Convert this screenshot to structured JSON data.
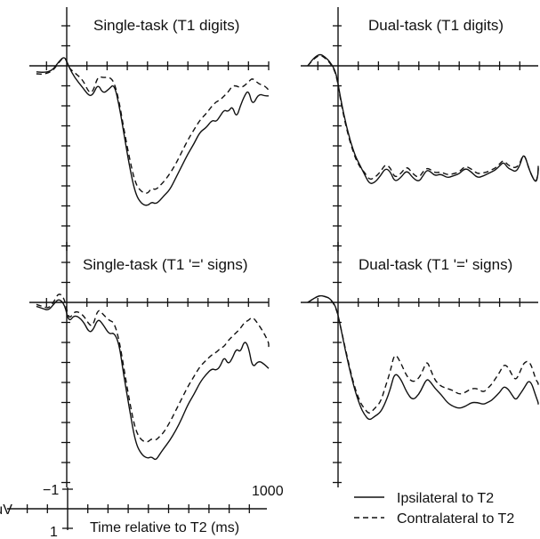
{
  "chart_data": [
    {
      "type": "line",
      "title": "Single-task (T1 digits)",
      "x_unit": "ms",
      "series": [
        {
          "name": "Ipsilateral to T2",
          "x": [
            -150,
            -120,
            -90,
            -65,
            -40,
            -10,
            10,
            40,
            80,
            110,
            130,
            155,
            180,
            210,
            235,
            260,
            280,
            310,
            340,
            370,
            400,
            420,
            440,
            460,
            480,
            510,
            540,
            570,
            600,
            630,
            660,
            690,
            720,
            740,
            760,
            780,
            800,
            820,
            840,
            860,
            880,
            900,
            920,
            950,
            980,
            1000,
            1030
          ],
          "y": [
            0.3,
            0.33,
            0.3,
            0.15,
            -0.2,
            -0.5,
            0.05,
            0.6,
            1.1,
            1.5,
            1.45,
            0.9,
            1.4,
            1.15,
            0.9,
            2.0,
            3.2,
            5.0,
            6.4,
            6.9,
            7.0,
            6.8,
            6.9,
            6.75,
            6.5,
            6.2,
            5.6,
            5.0,
            4.4,
            3.9,
            3.3,
            3.1,
            2.7,
            2.8,
            2.5,
            2.2,
            2.3,
            2.0,
            2.6,
            2.0,
            1.5,
            1.2,
            2.0,
            1.4,
            1.5,
            1.5,
            1.5
          ]
        },
        {
          "name": "Contralateral to T2",
          "x": [
            -150,
            -120,
            -90,
            -65,
            -40,
            -10,
            10,
            40,
            80,
            110,
            130,
            155,
            180,
            210,
            235,
            260,
            280,
            310,
            340,
            370,
            400,
            420,
            440,
            460,
            480,
            510,
            540,
            570,
            600,
            630,
            660,
            690,
            720,
            740,
            760,
            780,
            800,
            820,
            840,
            860,
            880,
            900,
            920,
            950,
            980,
            1000,
            1030
          ],
          "y": [
            0.4,
            0.42,
            0.35,
            0.2,
            -0.15,
            -0.5,
            0.1,
            0.35,
            0.7,
            1.35,
            1.3,
            0.5,
            0.6,
            0.55,
            0.8,
            1.8,
            3.0,
            4.6,
            5.9,
            6.3,
            6.4,
            6.1,
            6.2,
            6.0,
            5.8,
            5.4,
            4.9,
            4.3,
            3.7,
            3.2,
            2.7,
            2.4,
            2.0,
            1.8,
            1.7,
            1.5,
            1.3,
            1.0,
            1.0,
            1.1,
            1.0,
            0.8,
            0.6,
            0.9,
            1.0,
            1.2,
            1.3
          ]
        }
      ]
    },
    {
      "type": "line",
      "title": "Dual-task (T1 digits)",
      "x_unit": "ms",
      "series": [
        {
          "name": "Ipsilateral to T2",
          "x": [
            -150,
            -120,
            -90,
            -65,
            -40,
            -10,
            10,
            40,
            80,
            110,
            130,
            155,
            180,
            210,
            235,
            260,
            280,
            310,
            340,
            370,
            400,
            420,
            440,
            460,
            480,
            510,
            540,
            570,
            600,
            630,
            660,
            690,
            720,
            740,
            760,
            780,
            800,
            820,
            840,
            860,
            880,
            900,
            920,
            950,
            980,
            1000,
            1030
          ],
          "y": [
            0.0,
            -0.4,
            -0.6,
            -0.45,
            -0.2,
            0.3,
            1.5,
            3.0,
            4.4,
            5.0,
            5.4,
            5.9,
            5.85,
            5.5,
            5.1,
            5.3,
            5.8,
            5.6,
            5.2,
            5.6,
            5.8,
            5.5,
            5.2,
            5.3,
            5.5,
            5.4,
            5.6,
            5.5,
            5.4,
            5.1,
            5.3,
            5.6,
            5.5,
            5.4,
            5.3,
            5.2,
            5.0,
            4.8,
            5.1,
            5.2,
            5.3,
            5.0,
            4.3,
            5.3,
            5.9,
            5.4,
            5.0
          ]
        },
        {
          "name": "Contralateral to T2",
          "x": [
            -150,
            -120,
            -90,
            -65,
            -40,
            -10,
            10,
            40,
            80,
            110,
            130,
            155,
            180,
            210,
            235,
            260,
            280,
            310,
            340,
            370,
            400,
            420,
            440,
            460,
            480,
            510,
            540,
            570,
            600,
            630,
            660,
            690,
            720,
            740,
            760,
            780,
            800,
            820,
            840,
            860,
            880,
            900,
            920,
            950,
            980,
            1000,
            1030
          ],
          "y": [
            0.0,
            -0.35,
            -0.55,
            -0.4,
            -0.15,
            0.35,
            1.6,
            3.1,
            4.5,
            5.1,
            5.3,
            5.7,
            5.6,
            5.3,
            4.9,
            5.1,
            5.6,
            5.4,
            5.0,
            5.4,
            5.6,
            5.3,
            5.1,
            5.2,
            5.35,
            5.3,
            5.45,
            5.4,
            5.3,
            5.0,
            5.15,
            5.4,
            5.35,
            5.3,
            5.2,
            5.1,
            4.9,
            4.7,
            4.95,
            5.05,
            5.1,
            4.9,
            4.3,
            5.3,
            5.9,
            5.3,
            5.0
          ]
        }
      ]
    },
    {
      "type": "line",
      "title": "Single-task (T1 '=' signs)",
      "x_unit": "ms",
      "series": [
        {
          "name": "Ipsilateral to T2",
          "x": [
            -150,
            -120,
            -90,
            -65,
            -40,
            -10,
            10,
            40,
            80,
            110,
            130,
            155,
            180,
            210,
            235,
            260,
            280,
            310,
            340,
            370,
            400,
            420,
            440,
            460,
            480,
            510,
            540,
            570,
            600,
            630,
            660,
            690,
            720,
            740,
            760,
            780,
            800,
            820,
            840,
            860,
            880,
            900,
            920,
            950,
            980,
            1000,
            1030
          ],
          "y": [
            0.2,
            0.3,
            0.4,
            0.1,
            -0.2,
            0.1,
            1.0,
            0.6,
            0.9,
            1.5,
            1.4,
            0.8,
            1.1,
            1.6,
            1.5,
            2.1,
            3.5,
            5.3,
            7.0,
            7.6,
            7.8,
            7.7,
            7.9,
            7.6,
            7.3,
            6.9,
            6.4,
            5.8,
            5.1,
            4.6,
            4.0,
            3.6,
            3.3,
            3.4,
            3.2,
            2.7,
            3.1,
            2.8,
            2.3,
            2.5,
            1.9,
            2.2,
            3.3,
            2.9,
            3.1,
            3.3,
            3.3
          ]
        },
        {
          "name": "Contralateral to T2",
          "x": [
            -150,
            -120,
            -90,
            -65,
            -40,
            -10,
            10,
            40,
            80,
            110,
            130,
            155,
            180,
            210,
            235,
            260,
            280,
            310,
            340,
            370,
            400,
            420,
            440,
            460,
            480,
            510,
            540,
            570,
            600,
            630,
            660,
            690,
            720,
            740,
            760,
            780,
            800,
            820,
            840,
            860,
            880,
            900,
            920,
            950,
            980,
            1000,
            1030
          ],
          "y": [
            0.1,
            0.2,
            0.3,
            0.0,
            -0.5,
            -0.2,
            0.9,
            0.4,
            0.6,
            1.1,
            1.2,
            0.3,
            0.6,
            0.9,
            1.0,
            1.9,
            3.1,
            4.9,
            6.4,
            6.9,
            7.0,
            6.8,
            6.9,
            6.7,
            6.5,
            6.0,
            5.4,
            4.8,
            4.2,
            3.7,
            3.2,
            2.9,
            2.6,
            2.5,
            2.3,
            2.2,
            1.9,
            1.7,
            1.5,
            1.3,
            1.0,
            0.9,
            0.7,
            1.1,
            1.6,
            2.0,
            2.2
          ]
        }
      ]
    },
    {
      "type": "line",
      "title": "Dual-task (T1 '=' signs)",
      "x_unit": "ms",
      "series": [
        {
          "name": "Ipsilateral to T2",
          "x": [
            -150,
            -120,
            -90,
            -65,
            -40,
            -10,
            10,
            40,
            80,
            110,
            130,
            155,
            180,
            210,
            235,
            260,
            280,
            310,
            340,
            370,
            400,
            420,
            440,
            460,
            480,
            510,
            540,
            570,
            600,
            630,
            660,
            690,
            720,
            740,
            760,
            780,
            800,
            820,
            840,
            860,
            880,
            900,
            920,
            950,
            980,
            1000,
            1030
          ],
          "y": [
            0.0,
            -0.2,
            -0.35,
            -0.3,
            -0.2,
            0.2,
            1.1,
            2.6,
            4.3,
            5.2,
            5.6,
            5.9,
            5.7,
            5.5,
            5.0,
            4.3,
            3.5,
            3.8,
            4.5,
            4.9,
            4.6,
            4.2,
            3.8,
            4.0,
            4.3,
            4.6,
            5.0,
            5.2,
            5.3,
            5.2,
            5.0,
            5.0,
            5.1,
            5.0,
            4.9,
            4.7,
            4.5,
            4.2,
            4.3,
            4.6,
            4.9,
            4.6,
            4.3,
            3.8,
            4.7,
            5.0,
            5.1
          ]
        },
        {
          "name": "Contralateral to T2",
          "x": [
            -150,
            -120,
            -90,
            -65,
            -40,
            -10,
            10,
            40,
            80,
            110,
            130,
            155,
            180,
            210,
            235,
            260,
            280,
            310,
            340,
            370,
            400,
            420,
            440,
            460,
            480,
            510,
            540,
            570,
            600,
            630,
            660,
            690,
            720,
            740,
            760,
            780,
            800,
            820,
            840,
            860,
            880,
            900,
            920,
            950,
            980,
            1000,
            1030
          ],
          "y": [
            0.0,
            -0.2,
            -0.35,
            -0.3,
            -0.2,
            0.25,
            1.1,
            2.5,
            4.2,
            5.0,
            5.3,
            5.6,
            5.3,
            5.0,
            4.2,
            3.4,
            2.5,
            3.0,
            3.7,
            4.0,
            3.8,
            3.4,
            2.9,
            3.4,
            3.9,
            4.2,
            4.3,
            4.4,
            4.6,
            4.5,
            4.3,
            4.3,
            4.5,
            4.3,
            4.1,
            3.8,
            3.5,
            3.1,
            3.2,
            3.6,
            3.9,
            3.5,
            3.0,
            2.9,
            3.9,
            4.0,
            4.2
          ]
        }
      ]
    }
  ],
  "scale_bar": {
    "neg_label": "−1",
    "pos_label": "1",
    "unit_label": "μV",
    "time_label": "1000",
    "axis_label": "Time relative to T2 (ms)"
  },
  "legend": [
    {
      "name": "Ipsilateral to T2",
      "style": "solid"
    },
    {
      "name": "Contralateral to T2",
      "style": "dashed"
    }
  ]
}
